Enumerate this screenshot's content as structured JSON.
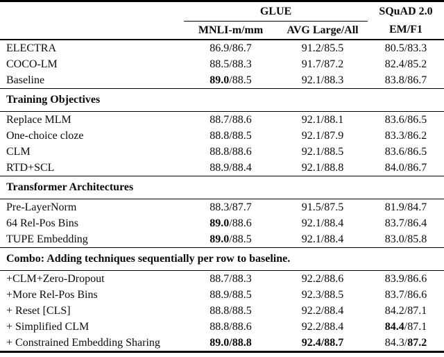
{
  "page": {
    "background_color": "#ffffff",
    "text_color": "#0b0b0b",
    "rule_color": "#000000"
  },
  "table": {
    "column_groups": [
      {
        "label": "GLUE",
        "span": 2
      },
      {
        "label": "SQuAD 2.0",
        "span": 1
      }
    ],
    "columns": [
      "MNLI-m/mm",
      "AVG Large/All",
      "EM/F1"
    ],
    "rows": [
      {
        "type": "data",
        "label": "ELECTRA",
        "cells": [
          {
            "values": [
              "86.9",
              "86.7"
            ],
            "bold": [
              false,
              false
            ]
          },
          {
            "values": [
              "91.2",
              "85.5"
            ],
            "bold": [
              false,
              false
            ]
          },
          {
            "values": [
              "80.5",
              "83.3"
            ],
            "bold": [
              false,
              false
            ]
          }
        ]
      },
      {
        "type": "data",
        "label": "COCO-LM",
        "cells": [
          {
            "values": [
              "88.5",
              "88.3"
            ],
            "bold": [
              false,
              false
            ]
          },
          {
            "values": [
              "91.7",
              "87.2"
            ],
            "bold": [
              false,
              false
            ]
          },
          {
            "values": [
              "82.4",
              "85.2"
            ],
            "bold": [
              false,
              false
            ]
          }
        ]
      },
      {
        "type": "data",
        "label": "Baseline",
        "cells": [
          {
            "values": [
              "89.0",
              "88.5"
            ],
            "bold": [
              true,
              false
            ]
          },
          {
            "values": [
              "92.1",
              "88.3"
            ],
            "bold": [
              false,
              false
            ]
          },
          {
            "values": [
              "83.8",
              "86.7"
            ],
            "bold": [
              false,
              false
            ]
          }
        ]
      },
      {
        "type": "section",
        "label": "Training Objectives"
      },
      {
        "type": "data",
        "label": "Replace MLM",
        "cells": [
          {
            "values": [
              "88.7",
              "88.6"
            ],
            "bold": [
              false,
              false
            ]
          },
          {
            "values": [
              "92.1",
              "88.1"
            ],
            "bold": [
              false,
              false
            ]
          },
          {
            "values": [
              "83.6",
              "86.5"
            ],
            "bold": [
              false,
              false
            ]
          }
        ]
      },
      {
        "type": "data",
        "label": "One-choice cloze",
        "cells": [
          {
            "values": [
              "88.8",
              "88.5"
            ],
            "bold": [
              false,
              false
            ]
          },
          {
            "values": [
              "92.1",
              "87.9"
            ],
            "bold": [
              false,
              false
            ]
          },
          {
            "values": [
              "83.3",
              "86.2"
            ],
            "bold": [
              false,
              false
            ]
          }
        ]
      },
      {
        "type": "data",
        "label": "CLM",
        "cells": [
          {
            "values": [
              "88.8",
              "88.6"
            ],
            "bold": [
              false,
              false
            ]
          },
          {
            "values": [
              "92.1",
              "88.5"
            ],
            "bold": [
              false,
              false
            ]
          },
          {
            "values": [
              "83.6",
              "86.5"
            ],
            "bold": [
              false,
              false
            ]
          }
        ]
      },
      {
        "type": "data",
        "label": "RTD+SCL",
        "cells": [
          {
            "values": [
              "88.9",
              "88.4"
            ],
            "bold": [
              false,
              false
            ]
          },
          {
            "values": [
              "92.1",
              "88.8"
            ],
            "bold": [
              false,
              false
            ]
          },
          {
            "values": [
              "84.0",
              "86.7"
            ],
            "bold": [
              false,
              false
            ]
          }
        ]
      },
      {
        "type": "section",
        "label": "Transformer Architectures"
      },
      {
        "type": "data",
        "label": "Pre-LayerNorm",
        "cells": [
          {
            "values": [
              "88.3",
              "87.7"
            ],
            "bold": [
              false,
              false
            ]
          },
          {
            "values": [
              "91.5",
              "87.5"
            ],
            "bold": [
              false,
              false
            ]
          },
          {
            "values": [
              "81.9",
              "84.7"
            ],
            "bold": [
              false,
              false
            ]
          }
        ]
      },
      {
        "type": "data",
        "label": "64 Rel-Pos Bins",
        "cells": [
          {
            "values": [
              "89.0",
              "88.6"
            ],
            "bold": [
              true,
              false
            ]
          },
          {
            "values": [
              "92.1",
              "88.4"
            ],
            "bold": [
              false,
              false
            ]
          },
          {
            "values": [
              "83.7",
              "86.4"
            ],
            "bold": [
              false,
              false
            ]
          }
        ]
      },
      {
        "type": "data",
        "label": "TUPE Embedding",
        "cells": [
          {
            "values": [
              "89.0",
              "88.5"
            ],
            "bold": [
              true,
              false
            ]
          },
          {
            "values": [
              "92.1",
              "88.4"
            ],
            "bold": [
              false,
              false
            ]
          },
          {
            "values": [
              "83.0",
              "85.8"
            ],
            "bold": [
              false,
              false
            ]
          }
        ]
      },
      {
        "type": "section",
        "label": "Combo: Adding techniques sequentially per row to baseline."
      },
      {
        "type": "data",
        "label": "+CLM+Zero-Dropout",
        "cells": [
          {
            "values": [
              "88.7",
              "88.3"
            ],
            "bold": [
              false,
              false
            ]
          },
          {
            "values": [
              "92.2",
              "88.6"
            ],
            "bold": [
              false,
              false
            ]
          },
          {
            "values": [
              "83.9",
              "86.6"
            ],
            "bold": [
              false,
              false
            ]
          }
        ]
      },
      {
        "type": "data",
        "label": "+More Rel-Pos Bins",
        "cells": [
          {
            "values": [
              "88.9",
              "88.5"
            ],
            "bold": [
              false,
              false
            ]
          },
          {
            "values": [
              "92.3",
              "88.5"
            ],
            "bold": [
              false,
              false
            ]
          },
          {
            "values": [
              "83.7",
              "86.6"
            ],
            "bold": [
              false,
              false
            ]
          }
        ]
      },
      {
        "type": "data",
        "label": "+ Reset [CLS]",
        "cells": [
          {
            "values": [
              "88.8",
              "88.5"
            ],
            "bold": [
              false,
              false
            ]
          },
          {
            "values": [
              "92.2",
              "88.4"
            ],
            "bold": [
              false,
              false
            ]
          },
          {
            "values": [
              "84.2",
              "87.1"
            ],
            "bold": [
              false,
              false
            ]
          }
        ]
      },
      {
        "type": "data",
        "label": "+ Simplified CLM",
        "cells": [
          {
            "values": [
              "88.8",
              "88.6"
            ],
            "bold": [
              false,
              false
            ]
          },
          {
            "values": [
              "92.2",
              "88.4"
            ],
            "bold": [
              false,
              false
            ]
          },
          {
            "values": [
              "84.4",
              "87.1"
            ],
            "bold": [
              true,
              false
            ]
          }
        ]
      },
      {
        "type": "data",
        "label": "+ Constrained Embedding Sharing",
        "cells": [
          {
            "values": [
              "89.0",
              "88.8"
            ],
            "bold": [
              true,
              true
            ]
          },
          {
            "values": [
              "92.4",
              "88.7"
            ],
            "bold": [
              true,
              true
            ]
          },
          {
            "values": [
              "84.3",
              "87.2"
            ],
            "bold": [
              false,
              true
            ]
          }
        ]
      }
    ]
  }
}
